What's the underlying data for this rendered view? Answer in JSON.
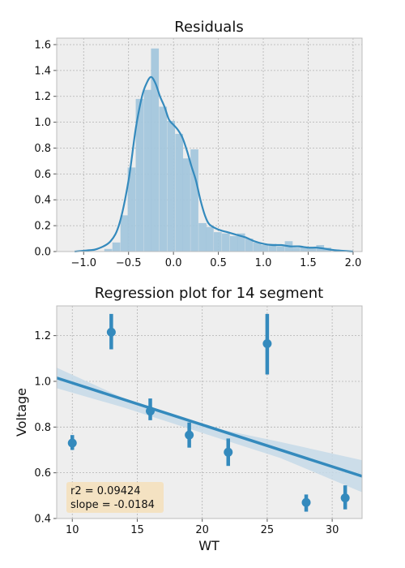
{
  "chart_data": [
    {
      "type": "histogram",
      "title": "Residuals",
      "xlabel": "",
      "ylabel": "",
      "xlim": [
        -1.3,
        2.1
      ],
      "ylim": [
        0,
        1.65
      ],
      "xticks": [
        "−1.0",
        "−0.5",
        "0.0",
        "0.5",
        "1.0",
        "1.5",
        "2.0"
      ],
      "xtick_values": [
        -1.0,
        -0.5,
        0.0,
        0.5,
        1.0,
        1.5,
        2.0
      ],
      "yticks": [
        "0.0",
        "0.2",
        "0.4",
        "0.6",
        "0.8",
        "1.0",
        "1.2",
        "1.4",
        "1.6"
      ],
      "ytick_values": [
        0.0,
        0.2,
        0.4,
        0.6,
        0.8,
        1.0,
        1.2,
        1.4,
        1.6
      ],
      "grid": true,
      "bin_width": 0.0872,
      "bins": [
        [
          -0.77,
          0.02
        ],
        [
          -0.68,
          0.07
        ],
        [
          -0.59,
          0.28
        ],
        [
          -0.51,
          0.65
        ],
        [
          -0.42,
          1.18
        ],
        [
          -0.33,
          1.25
        ],
        [
          -0.25,
          1.57
        ],
        [
          -0.16,
          1.12
        ],
        [
          -0.07,
          1.01
        ],
        [
          0.02,
          0.91
        ],
        [
          0.1,
          0.72
        ],
        [
          0.19,
          0.79
        ],
        [
          0.28,
          0.22
        ],
        [
          0.36,
          0.19
        ],
        [
          0.45,
          0.15
        ],
        [
          0.54,
          0.14
        ],
        [
          0.63,
          0.12
        ],
        [
          0.71,
          0.14
        ],
        [
          0.8,
          0.1
        ],
        [
          0.89,
          0.07
        ],
        [
          0.97,
          0.05
        ],
        [
          1.06,
          0.06
        ],
        [
          1.15,
          0.04
        ],
        [
          1.24,
          0.08
        ],
        [
          1.32,
          0.03
        ],
        [
          1.41,
          0.04
        ],
        [
          1.5,
          0.03
        ],
        [
          1.59,
          0.05
        ],
        [
          1.67,
          0.03
        ]
      ],
      "kde": [
        [
          -1.1,
          0.0
        ],
        [
          -0.95,
          0.01
        ],
        [
          -0.85,
          0.02
        ],
        [
          -0.7,
          0.08
        ],
        [
          -0.6,
          0.22
        ],
        [
          -0.5,
          0.55
        ],
        [
          -0.42,
          0.95
        ],
        [
          -0.35,
          1.2
        ],
        [
          -0.3,
          1.3
        ],
        [
          -0.25,
          1.35
        ],
        [
          -0.2,
          1.3
        ],
        [
          -0.15,
          1.2
        ],
        [
          -0.1,
          1.12
        ],
        [
          -0.05,
          1.02
        ],
        [
          0.0,
          0.98
        ],
        [
          0.05,
          0.94
        ],
        [
          0.1,
          0.88
        ],
        [
          0.15,
          0.78
        ],
        [
          0.2,
          0.66
        ],
        [
          0.25,
          0.55
        ],
        [
          0.3,
          0.4
        ],
        [
          0.35,
          0.28
        ],
        [
          0.4,
          0.21
        ],
        [
          0.5,
          0.17
        ],
        [
          0.6,
          0.15
        ],
        [
          0.7,
          0.13
        ],
        [
          0.8,
          0.11
        ],
        [
          0.9,
          0.08
        ],
        [
          1.0,
          0.06
        ],
        [
          1.1,
          0.05
        ],
        [
          1.2,
          0.05
        ],
        [
          1.3,
          0.04
        ],
        [
          1.4,
          0.04
        ],
        [
          1.5,
          0.03
        ],
        [
          1.6,
          0.03
        ],
        [
          1.7,
          0.02
        ],
        [
          1.8,
          0.01
        ],
        [
          1.9,
          0.005
        ],
        [
          2.0,
          0.0
        ]
      ],
      "colors": {
        "bar": "#a3c6dc",
        "line": "#348abd",
        "grid": "#b0b0b0",
        "background": "#eeeeee"
      }
    },
    {
      "type": "scatter",
      "title": "Regression plot for 14 segment",
      "xlabel": "WT",
      "ylabel": "Voltage",
      "xlim": [
        8.8,
        32.3
      ],
      "ylim": [
        0.4,
        1.33
      ],
      "xticks": [
        "10",
        "15",
        "20",
        "25",
        "30"
      ],
      "xtick_values": [
        10,
        15,
        20,
        25,
        30
      ],
      "yticks": [
        "0.4",
        "0.6",
        "0.8",
        "1.0",
        "1.2"
      ],
      "ytick_values": [
        0.4,
        0.6,
        0.8,
        1.0,
        1.2
      ],
      "grid": true,
      "points": [
        {
          "x": 10,
          "y": 0.73,
          "lo": 0.7,
          "hi": 0.765
        },
        {
          "x": 13,
          "y": 1.215,
          "lo": 1.14,
          "hi": 1.295
        },
        {
          "x": 16,
          "y": 0.87,
          "lo": 0.83,
          "hi": 0.925
        },
        {
          "x": 19,
          "y": 0.765,
          "lo": 0.71,
          "hi": 0.82
        },
        {
          "x": 22,
          "y": 0.69,
          "lo": 0.63,
          "hi": 0.75
        },
        {
          "x": 25,
          "y": 1.165,
          "lo": 1.03,
          "hi": 1.295
        },
        {
          "x": 28,
          "y": 0.47,
          "lo": 0.43,
          "hi": 0.505
        },
        {
          "x": 31,
          "y": 0.49,
          "lo": 0.44,
          "hi": 0.545
        }
      ],
      "regression": {
        "x": [
          8.8,
          32.3
        ],
        "y": [
          1.015,
          0.585
        ]
      },
      "ci_band": {
        "x": [
          8.8,
          14.0,
          20.5,
          26.0,
          32.3
        ],
        "upper": [
          1.06,
          0.925,
          0.8,
          0.735,
          0.655
        ],
        "lower": [
          0.97,
          0.885,
          0.765,
          0.665,
          0.515
        ]
      },
      "annotation": [
        "r2 = 0.09424",
        "slope = -0.0184"
      ],
      "colors": {
        "point": "#348abd",
        "line": "#348abd",
        "band": "#c6d9e8",
        "annotation_bg": "#f5deb3",
        "background": "#eeeeee"
      }
    }
  ]
}
